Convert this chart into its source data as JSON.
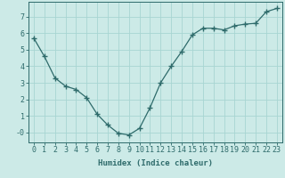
{
  "x": [
    0,
    1,
    2,
    3,
    4,
    5,
    6,
    7,
    8,
    9,
    10,
    11,
    12,
    13,
    14,
    15,
    16,
    17,
    18,
    19,
    20,
    21,
    22,
    23
  ],
  "y": [
    5.7,
    4.6,
    3.3,
    2.8,
    2.6,
    2.1,
    1.1,
    0.45,
    -0.05,
    -0.15,
    0.25,
    1.5,
    3.0,
    4.0,
    4.9,
    5.9,
    6.3,
    6.3,
    6.2,
    6.45,
    6.55,
    6.6,
    7.3,
    7.5
  ],
  "line_color": "#2e6b6b",
  "marker": "+",
  "marker_size": 4,
  "bg_color": "#cceae7",
  "grid_color": "#a8d5d2",
  "xlabel": "Humidex (Indice chaleur)",
  "ylabel": "",
  "xlim": [
    -0.5,
    23.5
  ],
  "ylim": [
    -0.6,
    7.9
  ],
  "yticks": [
    0,
    1,
    2,
    3,
    4,
    5,
    6,
    7
  ],
  "ytick_labels": [
    "-0",
    "1",
    "2",
    "3",
    "4",
    "5",
    "6",
    "7"
  ],
  "xticks": [
    0,
    1,
    2,
    3,
    4,
    5,
    6,
    7,
    8,
    9,
    10,
    11,
    12,
    13,
    14,
    15,
    16,
    17,
    18,
    19,
    20,
    21,
    22,
    23
  ],
  "label_fontsize": 6.5,
  "tick_fontsize": 6
}
